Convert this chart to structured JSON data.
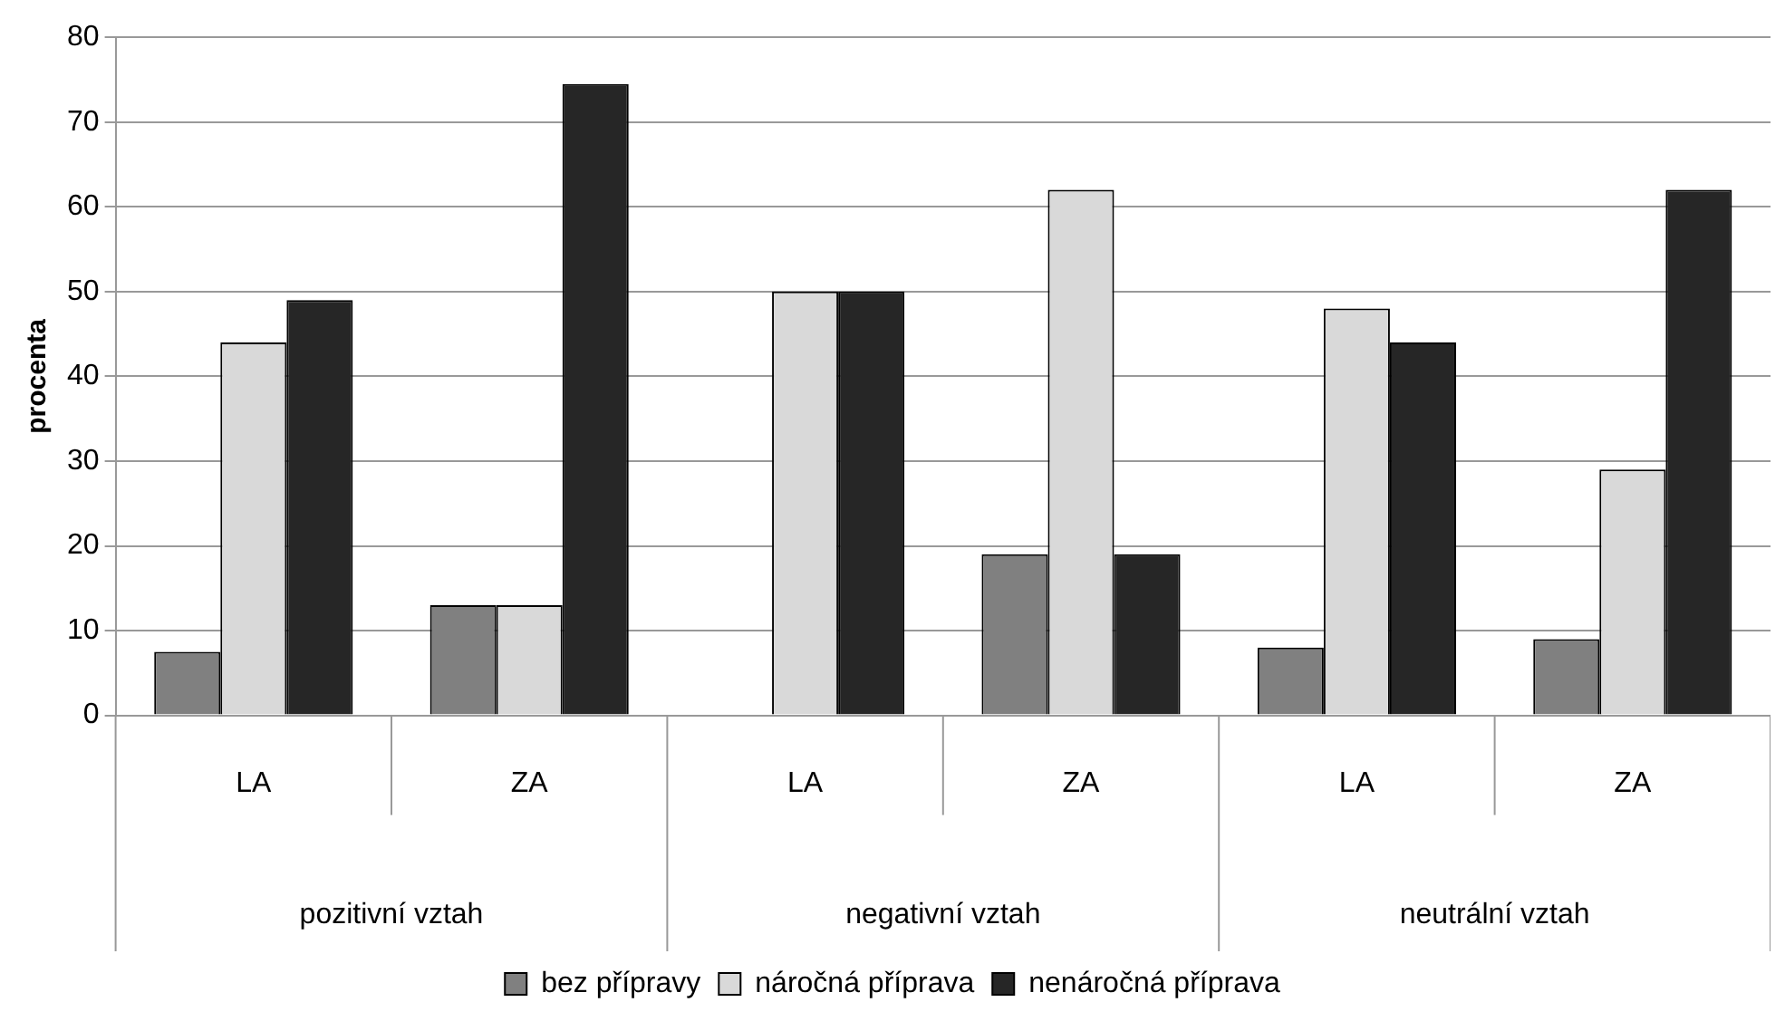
{
  "chart_data": {
    "type": "bar",
    "ylabel": "procenta",
    "categories": [
      "LA",
      "ZA",
      "LA",
      "ZA",
      "LA",
      "ZA"
    ],
    "annotations": [
      "pozitivní vztah",
      "negativní vztah",
      "neutrální vztah"
    ],
    "series": [
      {
        "name": "bez přípravy",
        "color": "#808080",
        "values": [
          7.5,
          13,
          0,
          19,
          8,
          9
        ]
      },
      {
        "name": "náročná příprava",
        "color": "#d9d9d9",
        "values": [
          44,
          13,
          50,
          62,
          48,
          29
        ]
      },
      {
        "name": "nenáročná příprava",
        "color": "#262626",
        "values": [
          49,
          74.5,
          50,
          19,
          44,
          62
        ]
      }
    ],
    "ylim": [
      0,
      80
    ],
    "yticks": [
      0,
      10,
      20,
      30,
      40,
      50,
      60,
      70,
      80
    ],
    "grid": "y",
    "legend": "bottom"
  }
}
